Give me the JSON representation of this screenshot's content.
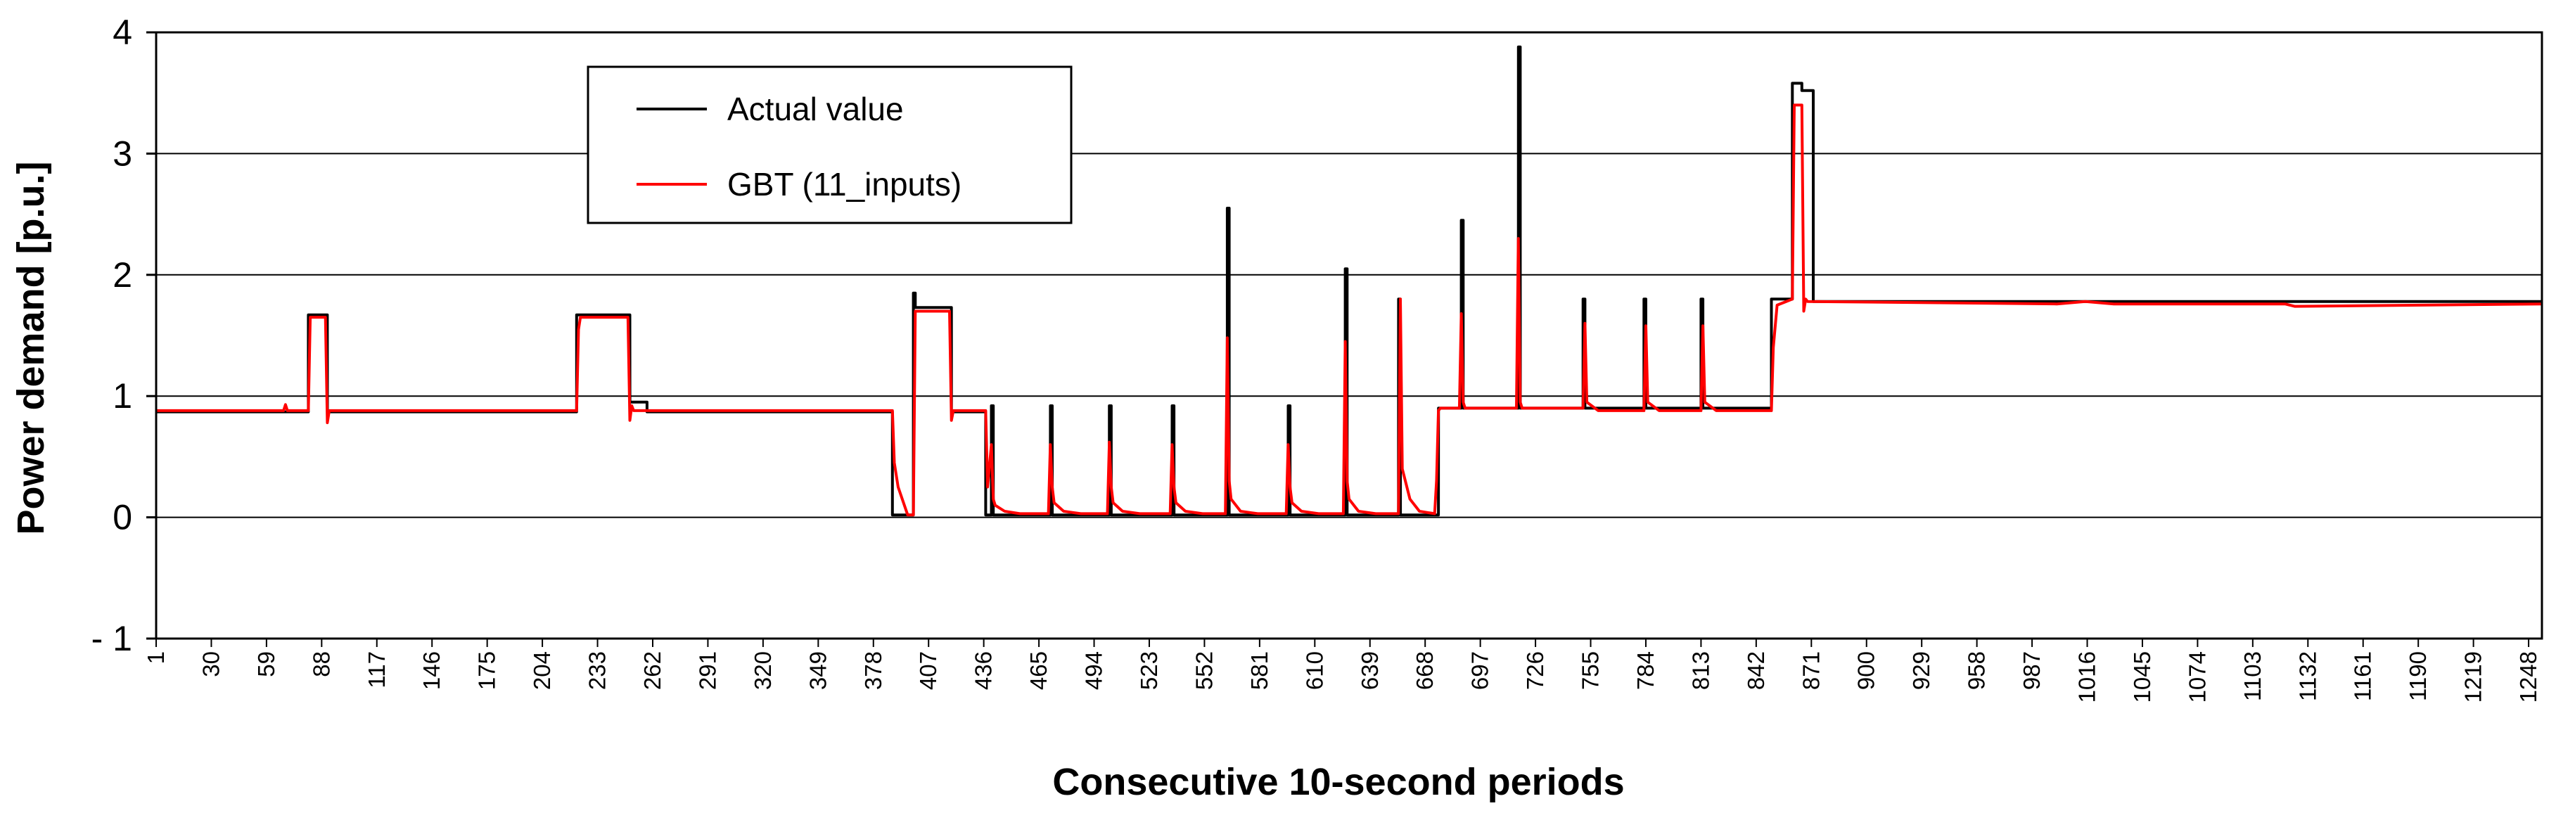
{
  "chart_data": {
    "type": "line",
    "title": "",
    "xlabel": "Consecutive 10-second periods",
    "ylabel": "Power demand [p.u.]",
    "xlim": [
      1,
      1255
    ],
    "ylim": [
      -1,
      4
    ],
    "grid": "horizontal",
    "legend_position": "top-left",
    "y_ticks": [
      {
        "value": 4,
        "label": "4"
      },
      {
        "value": 3,
        "label": "3"
      },
      {
        "value": 2,
        "label": "2"
      },
      {
        "value": 1,
        "label": "1"
      },
      {
        "value": 0,
        "label": "0"
      },
      {
        "value": -1,
        "label": "- 1"
      }
    ],
    "x_ticks": [
      1,
      30,
      59,
      88,
      117,
      146,
      175,
      204,
      233,
      262,
      291,
      320,
      349,
      378,
      407,
      436,
      465,
      494,
      523,
      552,
      581,
      610,
      639,
      668,
      697,
      726,
      755,
      784,
      813,
      842,
      871,
      900,
      929,
      958,
      987,
      1016,
      1045,
      1074,
      1103,
      1132,
      1161,
      1190,
      1219,
      1248
    ],
    "series": [
      {
        "name": "Actual value",
        "color": "#000000",
        "x": [
          1,
          81,
          81.01,
          91,
          91.01,
          222,
          222.01,
          250,
          250.01,
          259,
          259.01,
          388,
          388.01,
          399,
          399.01,
          400,
          400.01,
          401,
          401.01,
          419,
          419.01,
          437,
          437.01,
          440,
          440.01,
          441,
          441.01,
          443,
          443.01,
          444,
          444.01,
          471,
          471.01,
          472,
          472.01,
          473,
          473.01,
          502,
          502.01,
          503,
          503.01,
          504,
          504.01,
          535,
          535.01,
          536,
          536.01,
          537,
          537.01,
          564,
          564.01,
          565,
          565.01,
          566,
          566.01,
          596,
          596.01,
          597,
          597.01,
          598,
          598.01,
          626,
          626.01,
          627,
          627.01,
          628,
          628.01,
          654,
          654.01,
          655,
          655.01,
          656,
          656.01,
          675,
          675.01,
          687,
          687.01,
          688,
          688.01,
          689,
          689.01,
          717,
          717.01,
          718,
          718.01,
          719,
          719.01,
          751,
          751.01,
          752,
          752.01,
          753,
          753.01,
          783,
          783.01,
          784,
          784.01,
          785,
          785.01,
          813,
          813.01,
          814,
          814.01,
          815,
          815.01,
          850,
          850.01,
          860,
          860.01,
          861,
          861.01,
          866,
          866.01,
          872,
          872.01,
          1255
        ],
        "y": [
          0.87,
          0.87,
          1.67,
          1.67,
          0.87,
          0.87,
          1.67,
          1.67,
          0.95,
          0.95,
          0.87,
          0.87,
          0.02,
          0.02,
          1.85,
          1.85,
          1.73,
          1.73,
          1.73,
          1.73,
          0.87,
          0.87,
          0.02,
          0.02,
          0.92,
          0.92,
          0.02,
          0.02,
          0.02,
          0.02,
          0.02,
          0.02,
          0.92,
          0.92,
          0.02,
          0.02,
          0.02,
          0.02,
          0.92,
          0.92,
          0.02,
          0.02,
          0.02,
          0.02,
          0.92,
          0.92,
          0.02,
          0.02,
          0.02,
          0.02,
          2.55,
          2.55,
          0.02,
          0.02,
          0.02,
          0.02,
          0.92,
          0.92,
          0.02,
          0.02,
          0.02,
          0.02,
          2.05,
          2.05,
          0.02,
          0.02,
          0.02,
          0.02,
          1.8,
          1.8,
          0.02,
          0.02,
          0.02,
          0.02,
          0.9,
          0.9,
          2.45,
          2.45,
          0.9,
          0.9,
          0.9,
          0.9,
          3.88,
          3.88,
          0.9,
          0.9,
          0.9,
          0.9,
          1.8,
          1.8,
          0.9,
          0.9,
          0.9,
          0.9,
          1.8,
          1.8,
          0.9,
          0.9,
          0.9,
          0.9,
          1.8,
          1.8,
          0.9,
          0.9,
          0.9,
          0.9,
          1.8,
          1.8,
          1.8,
          1.8,
          3.58,
          3.58,
          3.52,
          3.52,
          1.78,
          1.78
        ]
      },
      {
        "name": "GBT (11_inputs)",
        "color": "#ff0000",
        "x": [
          1,
          68,
          69,
          70,
          81,
          82,
          90,
          91,
          92,
          222,
          223,
          224,
          249,
          250,
          251,
          252,
          388,
          389,
          391,
          396,
          399,
          400,
          401,
          418,
          419,
          420,
          437,
          438,
          440,
          441,
          442,
          447,
          455,
          470,
          471,
          472,
          473,
          478,
          487,
          501,
          502,
          503,
          504,
          509,
          518,
          534,
          535,
          536,
          537,
          542,
          551,
          563,
          564,
          565,
          566,
          571,
          580,
          595,
          596,
          597,
          598,
          603,
          612,
          625,
          626,
          627,
          628,
          633,
          642,
          654,
          655,
          656,
          660,
          665,
          673,
          674,
          675,
          676,
          686,
          687,
          688,
          689,
          695,
          716,
          717,
          718,
          719,
          725,
          751,
          752,
          753,
          759,
          783,
          784,
          785,
          791,
          813,
          814,
          815,
          821,
          850,
          851,
          853,
          861,
          862,
          866,
          867,
          868,
          869,
          1000,
          1015,
          1030,
          1120,
          1125,
          1255
        ],
        "y": [
          0.88,
          0.88,
          0.93,
          0.88,
          0.88,
          1.65,
          1.65,
          0.78,
          0.88,
          0.88,
          1.55,
          1.65,
          1.65,
          0.8,
          0.92,
          0.88,
          0.88,
          0.45,
          0.25,
          0.02,
          0.02,
          1.7,
          1.7,
          1.7,
          0.8,
          0.88,
          0.88,
          0.25,
          0.6,
          0.15,
          0.1,
          0.05,
          0.03,
          0.03,
          0.6,
          0.25,
          0.12,
          0.05,
          0.03,
          0.03,
          0.62,
          0.25,
          0.12,
          0.05,
          0.03,
          0.03,
          0.6,
          0.25,
          0.12,
          0.05,
          0.03,
          0.03,
          1.48,
          0.3,
          0.15,
          0.05,
          0.03,
          0.03,
          0.6,
          0.25,
          0.12,
          0.05,
          0.03,
          0.03,
          1.45,
          0.3,
          0.15,
          0.05,
          0.03,
          0.03,
          1.8,
          0.4,
          0.15,
          0.05,
          0.03,
          0.3,
          0.88,
          0.9,
          0.9,
          1.68,
          0.95,
          0.9,
          0.9,
          0.9,
          2.3,
          0.95,
          0.9,
          0.9,
          0.9,
          1.6,
          0.95,
          0.88,
          0.88,
          1.58,
          0.95,
          0.88,
          0.88,
          1.58,
          0.95,
          0.88,
          0.88,
          1.4,
          1.75,
          1.8,
          3.4,
          3.4,
          1.7,
          1.8,
          1.78,
          1.76,
          1.78,
          1.76,
          1.76,
          1.74,
          1.76
        ]
      }
    ]
  }
}
